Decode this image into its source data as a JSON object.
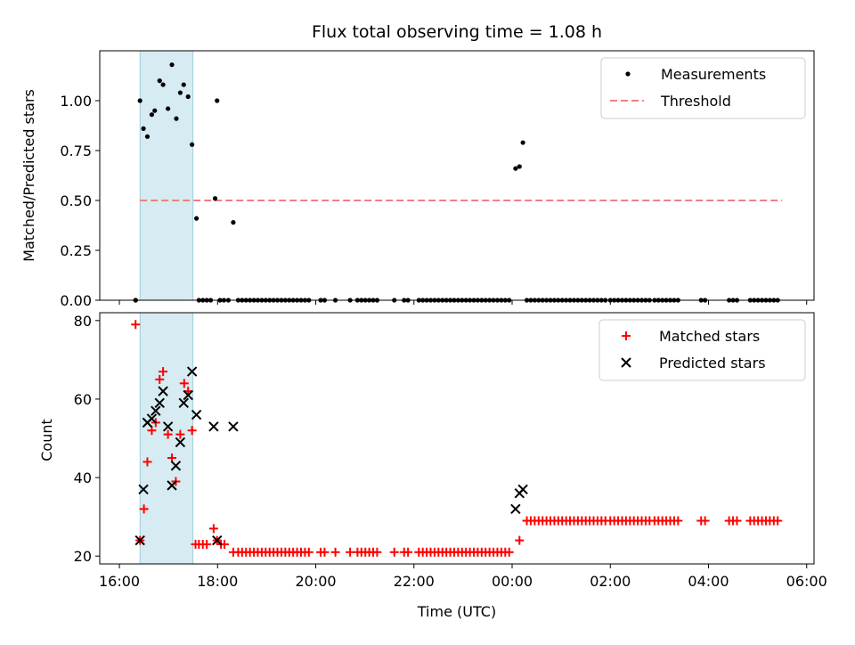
{
  "chart_data": [
    {
      "type": "scatter",
      "title": "Flux total observing time = 1.08 h",
      "xlabel": "",
      "ylabel": "Matched/Predicted stars",
      "xlim": [
        15.6,
        30.15
      ],
      "ylim": [
        0,
        1.25
      ],
      "yticks": [
        0.0,
        0.25,
        0.5,
        0.75,
        1.0
      ],
      "ytick_labels": [
        "0.00",
        "0.25",
        "0.50",
        "0.75",
        "1.00"
      ],
      "shaded_span": [
        16.42,
        17.5
      ],
      "legend": {
        "position": "top-right",
        "entries": [
          "Measurements",
          "Threshold"
        ]
      },
      "series": [
        {
          "name": "Measurements",
          "style": "dots",
          "color": "#000000",
          "x": [
            16.33,
            16.42,
            16.49,
            16.57,
            16.66,
            16.72,
            16.82,
            16.89,
            16.99,
            17.07,
            17.16,
            17.24,
            17.31,
            17.4,
            17.48,
            17.57,
            17.95,
            17.99,
            18.32,
            24.07,
            24.15,
            24.22
          ],
          "y": [
            0.0,
            1.0,
            0.86,
            0.82,
            0.93,
            0.95,
            1.1,
            1.08,
            0.96,
            1.18,
            0.91,
            1.04,
            1.08,
            1.02,
            0.78,
            0.41,
            0.51,
            1.0,
            0.39,
            0.66,
            0.67,
            0.79
          ]
        },
        {
          "name": "Threshold",
          "style": "dashed",
          "color": "#f08080",
          "x": [
            16.42,
            29.5
          ],
          "y": [
            0.5,
            0.5
          ]
        }
      ]
    },
    {
      "type": "scatter",
      "title": "",
      "xlabel": "Time (UTC)",
      "ylabel": "Count",
      "xlim": [
        15.6,
        30.15
      ],
      "ylim": [
        18,
        82
      ],
      "yticks": [
        20,
        40,
        60,
        80
      ],
      "ytick_labels": [
        "20",
        "40",
        "60",
        "80"
      ],
      "xticks": [
        16,
        18,
        20,
        22,
        24,
        26,
        28,
        30
      ],
      "xtick_labels": [
        "16:00",
        "18:00",
        "20:00",
        "22:00",
        "00:00",
        "02:00",
        "04:00",
        "06:00"
      ],
      "shaded_span": [
        16.42,
        17.5
      ],
      "legend": {
        "position": "top-right",
        "entries": [
          "Matched stars",
          "Predicted stars"
        ]
      },
      "series": [
        {
          "name": "Matched stars",
          "marker": "+",
          "color": "#ff0000",
          "x": [
            16.33,
            16.42,
            16.5,
            16.57,
            16.66,
            16.74,
            16.82,
            16.89,
            16.99,
            17.07,
            17.15,
            17.24,
            17.32,
            17.4,
            17.48,
            17.92,
            17.99,
            18.32,
            24.15
          ],
          "y": [
            79,
            24,
            32,
            44,
            52,
            54,
            65,
            67,
            51,
            45,
            39,
            51,
            64,
            62,
            52,
            27,
            24,
            21,
            24
          ]
        },
        {
          "name": "Predicted stars",
          "marker": "x",
          "color": "#000000",
          "x": [
            16.42,
            16.49,
            16.57,
            16.66,
            16.74,
            16.82,
            16.89,
            16.99,
            17.07,
            17.15,
            17.24,
            17.31,
            17.4,
            17.48,
            17.57,
            17.92,
            17.99,
            18.32,
            24.07,
            24.15,
            24.22
          ],
          "y": [
            24,
            37,
            54,
            55,
            57,
            59,
            62,
            53,
            38,
            43,
            49,
            59,
            61,
            67,
            56,
            53,
            24,
            53,
            32,
            36,
            37
          ]
        }
      ]
    }
  ]
}
